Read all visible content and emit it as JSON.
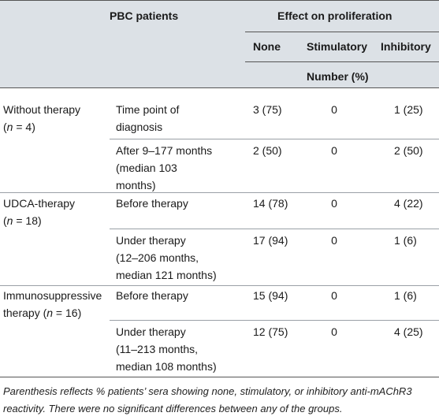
{
  "header": {
    "group": "PBC patients",
    "effect": "Effect on proliferation",
    "col_none": "None",
    "col_stim": "Stimulatory",
    "col_inhib": "Inhibitory",
    "number_label": "Number (%)"
  },
  "groups": [
    {
      "name_line1": "Without therapy",
      "n_prefix": "(",
      "n_var": "n",
      "n_suffix": " = 4)"
    },
    {
      "name_line1": "UDCA-therapy",
      "n_prefix": "(",
      "n_var": "n",
      "n_suffix": " = 18)"
    },
    {
      "name_line1": "Immunosuppressive",
      "n_prefix": "therapy (",
      "n_var": "n",
      "n_suffix": " = 16)"
    }
  ],
  "rows": [
    {
      "time": [
        "Time point of",
        "diagnosis"
      ],
      "none": "3 (75)",
      "stim": "0",
      "inhib": "1 (25)"
    },
    {
      "time": [
        "After 9–177 months",
        "(median 103",
        "months)"
      ],
      "none": "2 (50)",
      "stim": "0",
      "inhib": "2 (50)"
    },
    {
      "time": [
        "Before therapy"
      ],
      "none": "14 (78)",
      "stim": "0",
      "inhib": "4 (22)"
    },
    {
      "time": [
        "Under therapy",
        "(12–206 months,",
        "median 121 months)"
      ],
      "none": "17 (94)",
      "stim": "0",
      "inhib": "1 (6)"
    },
    {
      "time": [
        "Before therapy"
      ],
      "none": "15 (94)",
      "stim": "0",
      "inhib": "1 (6)"
    },
    {
      "time": [
        "Under therapy",
        "(11–213 months,",
        "median 108 months)"
      ],
      "none": "12 (75)",
      "stim": "0",
      "inhib": "4 (25)"
    }
  ],
  "footnote": "Parenthesis reflects % patients’ sera showing none, stimulatory, or inhibitory anti-mAChR3 reactivity. There were no significant differences between any of the groups."
}
